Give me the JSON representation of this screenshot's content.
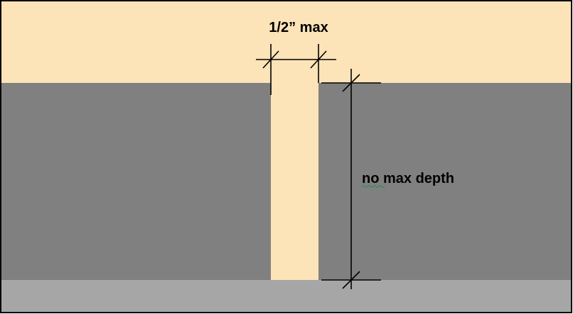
{
  "diagram": {
    "width_label": "1/2” max",
    "depth_label": "no max depth",
    "colors": {
      "surface": "#FCE3B8",
      "opening_fill": "#FCE3B8",
      "ground_mass": "#808080",
      "base": "#A6A6A6",
      "dimension_line": "#000000",
      "spellcheck_underline": "#2E8B57"
    }
  }
}
